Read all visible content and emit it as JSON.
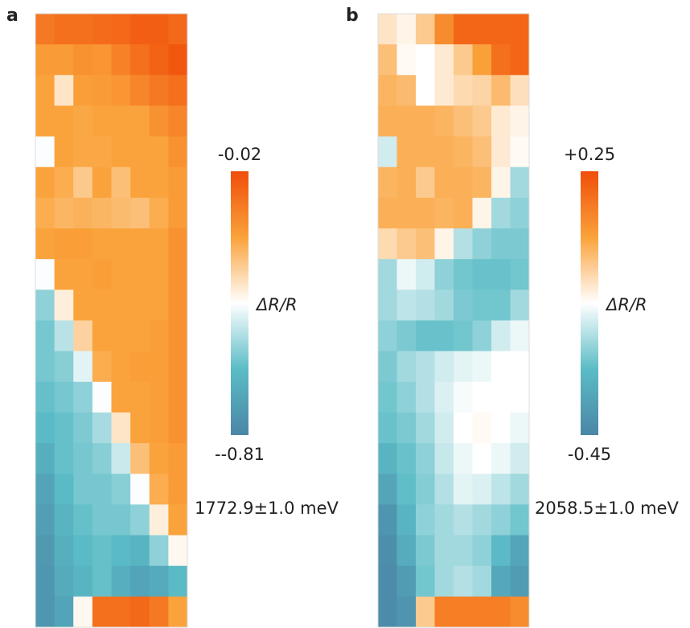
{
  "chart_data": [
    {
      "type": "heatmap",
      "panel_label": "a",
      "annotation": "1772.9±1.0 meV",
      "colorbar_label": "ΔR/R",
      "colormap": [
        "#4a86a6",
        "#5bbcc6",
        "#ffffff",
        "#faa23a",
        "#f04e0a"
      ],
      "clim": [
        -0.81,
        -0.02
      ],
      "cticks": [
        -0.02,
        {
          "value": -0.81,
          "label": "--0.81"
        }
      ],
      "values": [
        [
          -0.12,
          -0.1,
          -0.1,
          -0.09,
          -0.08,
          -0.06,
          -0.06,
          -0.08
        ],
        [
          -0.2,
          -0.2,
          -0.18,
          -0.19,
          -0.14,
          -0.1,
          -0.07,
          -0.04
        ],
        [
          -0.22,
          -0.36,
          -0.21,
          -0.2,
          -0.19,
          -0.15,
          -0.12,
          -0.1
        ],
        [
          -0.22,
          -0.22,
          -0.23,
          -0.22,
          -0.22,
          -0.22,
          -0.18,
          -0.15
        ],
        [
          -0.42,
          -0.22,
          -0.23,
          -0.23,
          -0.22,
          -0.22,
          -0.22,
          -0.18
        ],
        [
          -0.22,
          -0.24,
          -0.3,
          -0.22,
          -0.28,
          -0.22,
          -0.22,
          -0.2
        ],
        [
          -0.24,
          -0.26,
          -0.25,
          -0.26,
          -0.27,
          -0.28,
          -0.24,
          -0.2
        ],
        [
          -0.22,
          -0.21,
          -0.21,
          -0.22,
          -0.22,
          -0.22,
          -0.22,
          -0.18
        ],
        [
          -0.42,
          -0.22,
          -0.22,
          -0.21,
          -0.22,
          -0.22,
          -0.22,
          -0.18
        ],
        [
          -0.55,
          -0.38,
          -0.22,
          -0.22,
          -0.22,
          -0.22,
          -0.22,
          -0.18
        ],
        [
          -0.58,
          -0.5,
          -0.32,
          -0.22,
          -0.22,
          -0.22,
          -0.21,
          -0.18
        ],
        [
          -0.58,
          -0.56,
          -0.45,
          -0.24,
          -0.22,
          -0.21,
          -0.21,
          -0.18
        ],
        [
          -0.6,
          -0.58,
          -0.55,
          -0.42,
          -0.22,
          -0.22,
          -0.21,
          -0.18
        ],
        [
          -0.62,
          -0.6,
          -0.57,
          -0.52,
          -0.36,
          -0.22,
          -0.21,
          -0.18
        ],
        [
          -0.66,
          -0.6,
          -0.58,
          -0.56,
          -0.48,
          -0.28,
          -0.22,
          -0.2
        ],
        [
          -0.7,
          -0.62,
          -0.58,
          -0.58,
          -0.56,
          -0.42,
          -0.24,
          -0.2
        ],
        [
          -0.72,
          -0.64,
          -0.6,
          -0.58,
          -0.58,
          -0.55,
          -0.38,
          -0.22
        ],
        [
          -0.74,
          -0.66,
          -0.62,
          -0.6,
          -0.62,
          -0.64,
          -0.55,
          -0.4
        ],
        [
          -0.75,
          -0.68,
          -0.64,
          -0.6,
          -0.66,
          -0.7,
          -0.68,
          -0.62
        ],
        [
          -0.75,
          -0.7,
          -0.4,
          -0.1,
          -0.1,
          -0.08,
          -0.12,
          -0.22
        ]
      ]
    },
    {
      "type": "heatmap",
      "panel_label": "b",
      "annotation": "2058.5±1.0 meV",
      "colorbar_label": "ΔR/R",
      "colormap": [
        "#4a86a6",
        "#5bbcc6",
        "#ffffff",
        "#faa23a",
        "#f04e0a"
      ],
      "clim": [
        -0.45,
        0.25
      ],
      "cticks": [
        {
          "value": 0.25,
          "label": "+0.25"
        },
        -0.45
      ],
      "values": [
        [
          -0.05,
          -0.08,
          0.0,
          0.12,
          0.2,
          0.2,
          0.2,
          0.2
        ],
        [
          0.02,
          -0.09,
          -0.1,
          -0.06,
          0.0,
          0.08,
          0.18,
          0.2
        ],
        [
          0.04,
          0.03,
          -0.1,
          -0.06,
          -0.03,
          -0.02,
          0.03,
          -0.04
        ],
        [
          0.05,
          0.05,
          0.05,
          0.04,
          0.02,
          0.0,
          -0.06,
          -0.08
        ],
        [
          -0.15,
          0.05,
          0.05,
          0.05,
          0.04,
          0.02,
          -0.06,
          -0.09
        ],
        [
          0.04,
          0.05,
          0.0,
          0.05,
          0.05,
          0.04,
          -0.08,
          -0.2
        ],
        [
          0.05,
          0.05,
          0.05,
          0.04,
          0.05,
          -0.08,
          -0.2,
          -0.22
        ],
        [
          -0.03,
          0.0,
          0.02,
          -0.08,
          -0.18,
          -0.22,
          -0.24,
          -0.24
        ],
        [
          -0.2,
          -0.12,
          -0.15,
          -0.22,
          -0.25,
          -0.26,
          -0.26,
          -0.25
        ],
        [
          -0.2,
          -0.17,
          -0.18,
          -0.2,
          -0.24,
          -0.25,
          -0.25,
          -0.2
        ],
        [
          -0.22,
          -0.24,
          -0.26,
          -0.26,
          -0.25,
          -0.22,
          -0.15,
          -0.12
        ],
        [
          -0.24,
          -0.2,
          -0.18,
          -0.15,
          -0.13,
          -0.12,
          -0.1,
          -0.1
        ],
        [
          -0.25,
          -0.22,
          -0.18,
          -0.14,
          -0.11,
          -0.1,
          -0.1,
          -0.1
        ],
        [
          -0.26,
          -0.24,
          -0.2,
          -0.15,
          -0.1,
          -0.09,
          -0.1,
          -0.12
        ],
        [
          -0.3,
          -0.26,
          -0.22,
          -0.16,
          -0.12,
          -0.1,
          -0.12,
          -0.15
        ],
        [
          -0.35,
          -0.27,
          -0.23,
          -0.18,
          -0.13,
          -0.14,
          -0.17,
          -0.2
        ],
        [
          -0.4,
          -0.3,
          -0.22,
          -0.2,
          -0.18,
          -0.2,
          -0.22,
          -0.25
        ],
        [
          -0.42,
          -0.33,
          -0.24,
          -0.2,
          -0.2,
          -0.22,
          -0.28,
          -0.35
        ],
        [
          -0.43,
          -0.38,
          -0.25,
          -0.2,
          -0.18,
          -0.2,
          -0.34,
          -0.38
        ],
        [
          -0.43,
          -0.4,
          0.0,
          0.15,
          0.15,
          0.15,
          0.15,
          0.12
        ]
      ]
    }
  ]
}
